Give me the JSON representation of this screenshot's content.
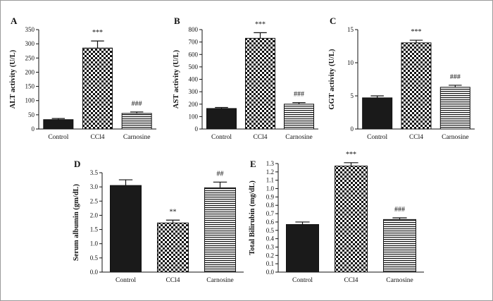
{
  "colors": {
    "control": "#1a1a1a",
    "axis": "#111111",
    "pattern_dark": "#111111",
    "pattern_light": "#ffffff"
  },
  "chart_data": [
    {
      "panel": "A",
      "type": "bar",
      "categories": [
        "Control",
        "CCl4",
        "Carnosine"
      ],
      "values": [
        33,
        285,
        55
      ],
      "errors": [
        4,
        25,
        5
      ],
      "annotations": [
        "",
        "***",
        "###"
      ],
      "ylabel": "ALT activity (U/L)",
      "ylim": [
        0,
        350
      ],
      "yticks": [
        0,
        50,
        100,
        150,
        200,
        250,
        300,
        350
      ],
      "fills": [
        "solid",
        "checker",
        "hlines"
      ]
    },
    {
      "panel": "B",
      "type": "bar",
      "categories": [
        "Control",
        "CCl4",
        "Carnosine"
      ],
      "values": [
        165,
        730,
        200
      ],
      "errors": [
        8,
        45,
        12
      ],
      "annotations": [
        "",
        "***",
        "###"
      ],
      "ylabel": "AST activity (U/L)",
      "ylim": [
        0,
        800
      ],
      "yticks": [
        0,
        100,
        200,
        300,
        400,
        500,
        600,
        700,
        800
      ],
      "fills": [
        "solid",
        "checker",
        "hlines"
      ]
    },
    {
      "panel": "C",
      "type": "bar",
      "categories": [
        "Control",
        "CCl4",
        "Carnosine"
      ],
      "values": [
        4.7,
        13.0,
        6.3
      ],
      "errors": [
        0.3,
        0.4,
        0.3
      ],
      "annotations": [
        "",
        "***",
        "###"
      ],
      "ylabel": "GGT activity (U/L)",
      "ylim": [
        0,
        15
      ],
      "yticks": [
        0,
        5,
        10,
        15
      ],
      "fills": [
        "solid",
        "checker",
        "hlines"
      ]
    },
    {
      "panel": "D",
      "type": "bar",
      "categories": [
        "Control",
        "CCl4",
        "Carnosine"
      ],
      "values": [
        3.05,
        1.73,
        2.97
      ],
      "errors": [
        0.2,
        0.1,
        0.2
      ],
      "annotations": [
        "",
        "**",
        "##"
      ],
      "ylabel": "Serum albumin (gm/dL)",
      "ylim": [
        0,
        3.5
      ],
      "yticks": [
        "0.0",
        "0.5",
        "1.0",
        "1.5",
        "2.0",
        "2.5",
        "3.0",
        "3.5"
      ],
      "fills": [
        "solid",
        "checker",
        "hlines"
      ]
    },
    {
      "panel": "E",
      "type": "bar",
      "categories": [
        "Control",
        "CCl4",
        "Carnosine"
      ],
      "values": [
        0.57,
        1.27,
        0.63
      ],
      "errors": [
        0.03,
        0.04,
        0.02
      ],
      "annotations": [
        "",
        "***",
        "###"
      ],
      "ylabel": "Total Bilirubin (mg/dL)",
      "ylim": [
        0,
        1.3
      ],
      "yticks": [
        "0.0",
        "0.1",
        "0.2",
        "0.3",
        "0.4",
        "0.5",
        "0.6",
        "0.7",
        "0.8",
        "0.9",
        "1.0",
        "1.1",
        "1.2",
        "1.3"
      ],
      "fills": [
        "solid",
        "checker",
        "hlines"
      ]
    }
  ]
}
